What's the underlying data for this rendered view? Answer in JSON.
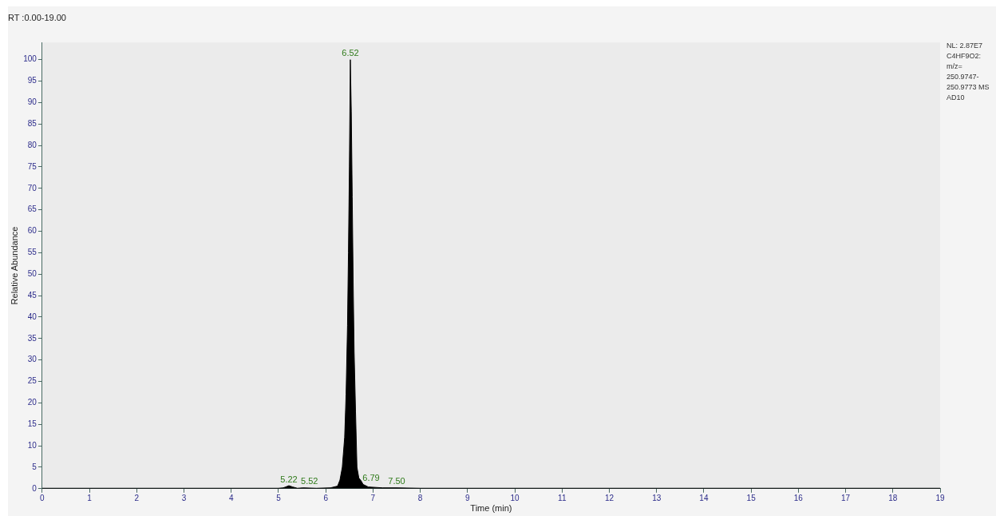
{
  "chart_data": {
    "type": "area",
    "title": "RT :0.00-19.00",
    "xlabel": "Time (min)",
    "ylabel": "Relative Abundance",
    "xlim": [
      0,
      19
    ],
    "xticks": [
      0,
      1,
      2,
      3,
      4,
      5,
      6,
      7,
      8,
      9,
      10,
      11,
      12,
      13,
      14,
      15,
      16,
      17,
      18,
      19
    ],
    "ylim": [
      0,
      104
    ],
    "yticks": [
      0,
      5,
      10,
      15,
      20,
      25,
      30,
      35,
      40,
      45,
      50,
      55,
      60,
      65,
      70,
      75,
      80,
      85,
      90,
      95,
      100
    ],
    "grid": false,
    "legend": false,
    "marker": "none",
    "series": [
      {
        "color": "#000000",
        "x": [
          0,
          1,
          2,
          3,
          4,
          5,
          5.1,
          5.15,
          5.22,
          5.3,
          5.4,
          5.52,
          5.8,
          6.1,
          6.25,
          6.3,
          6.35,
          6.4,
          6.43,
          6.46,
          6.48,
          6.5,
          6.52,
          6.54,
          6.56,
          6.58,
          6.6,
          6.63,
          6.66,
          6.7,
          6.75,
          6.79,
          6.9,
          7.2,
          7.5,
          8,
          10,
          12,
          14,
          16,
          18,
          19
        ],
        "values": [
          0.1,
          0.1,
          0.1,
          0.1,
          0.1,
          0.1,
          0.2,
          0.4,
          0.7,
          0.4,
          0.1,
          0.2,
          0.1,
          0.2,
          0.6,
          2,
          5,
          12,
          22,
          38,
          55,
          75,
          100,
          88,
          68,
          48,
          32,
          18,
          5,
          2.5,
          1.8,
          1,
          0.4,
          0.2,
          0.2,
          0.1,
          0.1,
          0.1,
          0.1,
          0.1,
          0.1,
          0.1
        ]
      }
    ],
    "annotations": [
      {
        "text": "6.52",
        "x": 6.52,
        "y": 100
      },
      {
        "text": "5.22",
        "x": 5.22,
        "y": 0.7
      },
      {
        "text": "5.52",
        "x": 5.52,
        "y": 0.2
      },
      {
        "text": "6.79",
        "x": 6.79,
        "y": 1
      },
      {
        "text": "7.50",
        "x": 7.5,
        "y": 0.2
      },
      "NL: 2.87E7\nC4HF9O2:\nm/z=\n250.9747-\n250.9773 MS\nAD10"
    ]
  }
}
